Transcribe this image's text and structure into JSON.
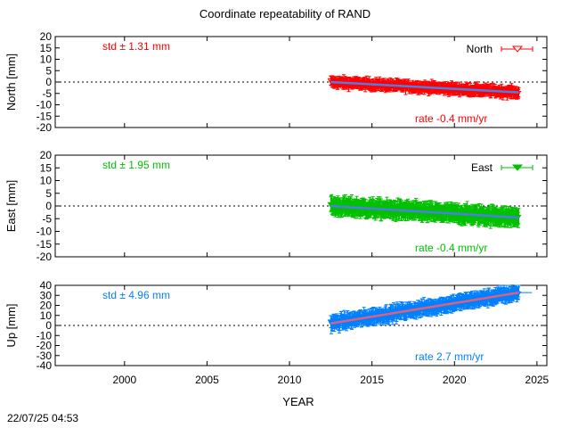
{
  "figure": {
    "title": "Coordinate repeatability of RAND",
    "xlabel": "YEAR",
    "timestamp": "22/07/25 04:53"
  },
  "chart_data": [
    {
      "type": "scatter",
      "name": "north",
      "ylabel": "North [mm]",
      "legend": "North",
      "legend_marker": "triangle-down-open",
      "std_text": "std ± 1.31 mm",
      "rate_text": "rate -0.4 mm/yr",
      "color": "#ff0000",
      "trend_color": "#4d7de6",
      "xlim": [
        1995.8,
        2025.6
      ],
      "ylim": [
        -20,
        20
      ],
      "yticks": [
        -20,
        -15,
        -10,
        -5,
        0,
        5,
        10,
        15,
        20
      ],
      "xticks": [
        2000,
        2005,
        2010,
        2015,
        2020,
        2025
      ],
      "data_range": [
        2012.5,
        2023.9
      ],
      "trend_start": 0.0,
      "rate": -0.4,
      "scatter": 1.6,
      "err": 2.0,
      "grid": false
    },
    {
      "type": "scatter",
      "name": "east",
      "ylabel": "East [mm]",
      "legend": "East",
      "legend_marker": "triangle-down-filled",
      "std_text": "std ± 1.95 mm",
      "rate_text": "rate -0.4 mm/yr",
      "color": "#00c000",
      "trend_color": "#4d7de6",
      "xlim": [
        1995.8,
        2025.6
      ],
      "ylim": [
        -20,
        20
      ],
      "yticks": [
        -20,
        -15,
        -10,
        -5,
        0,
        5,
        10,
        15,
        20
      ],
      "xticks": [
        2000,
        2005,
        2010,
        2015,
        2020,
        2025
      ],
      "data_range": [
        2012.5,
        2023.9
      ],
      "trend_start": 0.0,
      "rate": -0.4,
      "scatter": 2.0,
      "err": 3.0,
      "grid": false
    },
    {
      "type": "scatter",
      "name": "up",
      "ylabel": "Up [mm]",
      "std_text": "std ± 4.96 mm",
      "rate_text": "rate  2.7 mm/yr",
      "color": "#0080ff",
      "trend_color": "#e0607a",
      "xlim": [
        1995.8,
        2025.6
      ],
      "ylim": [
        -40,
        40
      ],
      "yticks": [
        -40,
        -30,
        -20,
        -10,
        0,
        10,
        20,
        30,
        40
      ],
      "xticks": [
        2000,
        2005,
        2010,
        2015,
        2020,
        2025
      ],
      "xticklabels": [
        "2000",
        "2005",
        "2010",
        "2015",
        "2020",
        "2025"
      ],
      "data_range": [
        2012.5,
        2023.9
      ],
      "trend_start": 2.0,
      "rate": 2.7,
      "scatter": 5.0,
      "err": 6.0,
      "grid": false
    }
  ]
}
